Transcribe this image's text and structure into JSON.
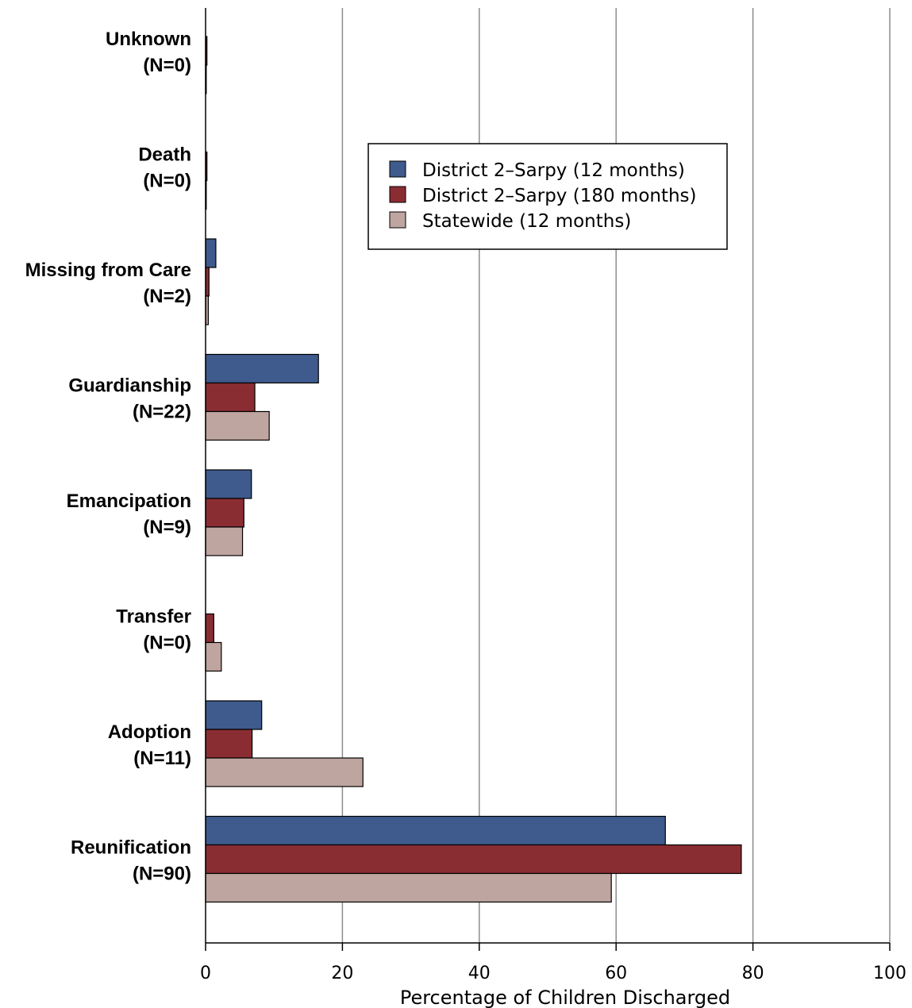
{
  "chart_data": {
    "type": "bar",
    "orientation": "horizontal",
    "title": "",
    "xlabel": "Percentage of Children Discharged",
    "ylabel": "",
    "xlim": [
      0,
      100
    ],
    "xticks": [
      "0",
      "20",
      "40",
      "60",
      "80",
      "100"
    ],
    "grid": "vertical",
    "legend_position": "upper-center",
    "categories": [
      [
        "Unknown",
        "(N=0)"
      ],
      [
        "Death",
        "(N=0)"
      ],
      [
        "Missing from Care",
        "(N=2)"
      ],
      [
        "Guardianship",
        "(N=22)"
      ],
      [
        "Emancipation",
        "(N=9)"
      ],
      [
        "Transfer",
        "(N=0)"
      ],
      [
        "Adoption",
        "(N=11)"
      ],
      [
        "Reunification",
        "(N=90)"
      ]
    ],
    "series": [
      {
        "name": "District 2–Sarpy (12 months)",
        "color": "#3f5a8c",
        "values": [
          0,
          0,
          1.5,
          16.5,
          6.7,
          0,
          8.2,
          67.2
        ]
      },
      {
        "name": "District 2–Sarpy (180 months)",
        "color": "#8a2d33",
        "values": [
          0.2,
          0.2,
          0.5,
          7.2,
          5.6,
          1.2,
          6.8,
          78.3
        ]
      },
      {
        "name": "Statewide (12 months)",
        "color": "#bfa59f",
        "values": [
          0.1,
          0.1,
          0.4,
          9.3,
          5.4,
          2.3,
          23.0,
          59.3
        ]
      }
    ]
  }
}
